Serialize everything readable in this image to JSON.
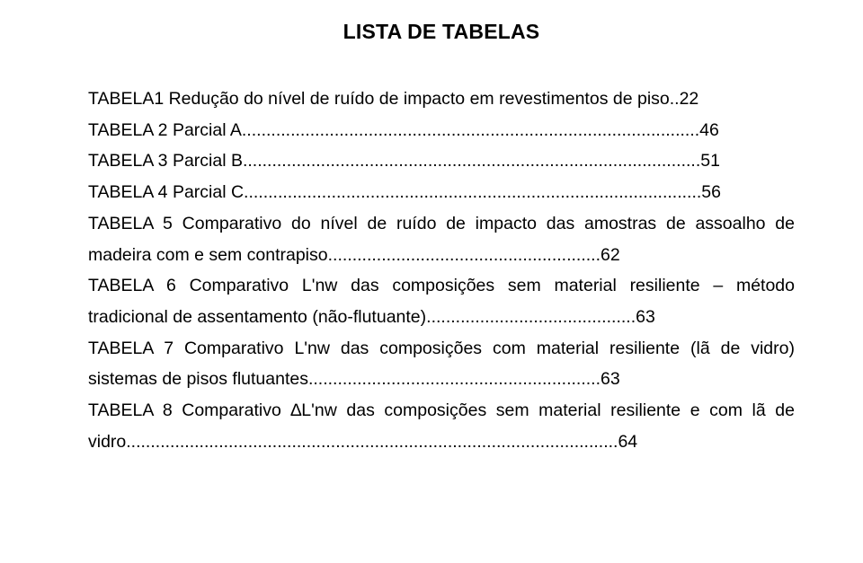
{
  "document": {
    "title": "LISTA DE TABELAS",
    "font_family": "Arial",
    "title_fontsize": 23,
    "body_fontsize": 19.5,
    "line_height": 1.78,
    "text_color": "#000000",
    "background_color": "#ffffff",
    "entries": [
      {
        "label": "TABELA1 Redução do nível de ruído de impacto em revestimentos de piso",
        "page": "22"
      },
      {
        "label": "TABELA 2 Parcial A",
        "page": "46"
      },
      {
        "label": "TABELA 3 Parcial B",
        "page": "51"
      },
      {
        "label": "TABELA 4 Parcial C",
        "page": "56"
      },
      {
        "label": "TABELA 5 Comparativo do nível de ruído de impacto das amostras de assoalho de madeira com e sem contrapiso",
        "page": "62"
      },
      {
        "label": "TABELA 6 Comparativo L'nw das composições sem material resiliente – método tradicional de assentamento (não-flutuante)",
        "page": "63"
      },
      {
        "label": "TABELA 7 Comparativo L'nw das composições com material resiliente (lã de vidro) sistemas de pisos flutuantes",
        "page": "63"
      },
      {
        "label": "TABELA 8 Comparativo ∆L'nw das composições sem material resiliente e com lã de vidro",
        "page": "64"
      }
    ],
    "lines": [
      "TABELA1 Redução do nível de ruído de impacto em revestimentos de piso..22",
      "TABELA 2 Parcial A..............................................................................................46",
      "TABELA 3 Parcial B..............................................................................................51",
      "TABELA 4 Parcial C..............................................................................................56",
      "TABELA 5 Comparativo do nível de ruído de impacto das amostras de assoalho de madeira com e sem contrapiso........................................................62",
      "TABELA 6 Comparativo L'nw das composições sem material resiliente – método tradicional de assentamento (não-flutuante)...........................................63",
      "TABELA 7 Comparativo L'nw das composições com material resiliente (lã de vidro) sistemas de pisos flutuantes............................................................63",
      "TABELA 8 Comparativo ∆L'nw das composições sem material resiliente e com lã de vidro.....................................................................................................64"
    ]
  }
}
